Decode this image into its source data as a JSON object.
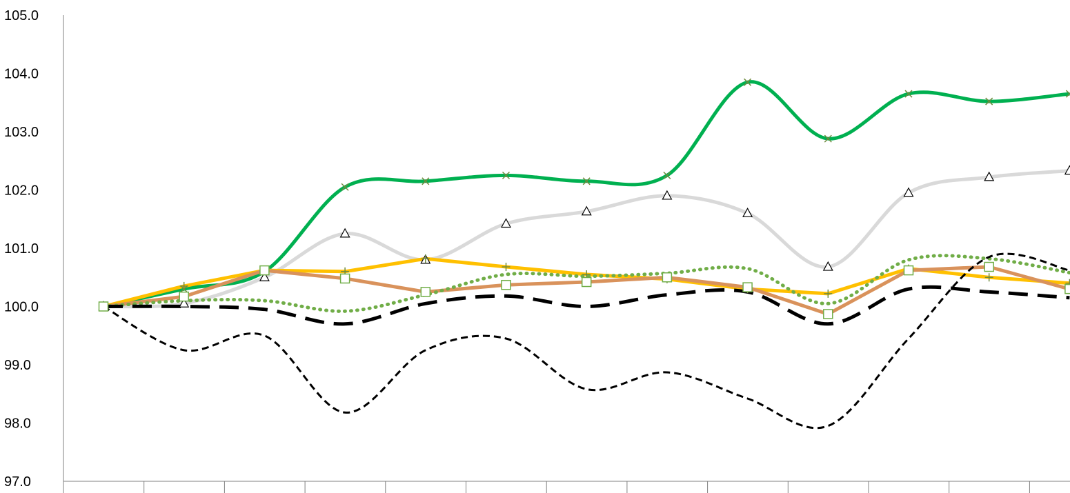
{
  "chart_data": {
    "type": "line",
    "title": "",
    "xlabel": "",
    "ylabel": "",
    "ylim": [
      97.0,
      105.0
    ],
    "yticks": [
      "105.0",
      "104.0",
      "103.0",
      "102.0",
      "101.0",
      "100.0",
      "99.0",
      "98.0",
      "97.0"
    ],
    "x_count": 13,
    "grid": false,
    "legend": "none",
    "series": [
      {
        "style": "solid-x-markers",
        "color": "#00B050",
        "marker_color": "#6E8B3D",
        "smooth": true,
        "values": [
          100.0,
          100.3,
          100.6,
          102.05,
          102.15,
          102.25,
          102.15,
          102.25,
          103.85,
          102.88,
          103.65,
          103.52,
          103.65
        ]
      },
      {
        "style": "solid-triangle-markers",
        "color": "#D9D9D9",
        "marker_color": "#000000",
        "smooth": true,
        "values": [
          100.0,
          100.05,
          100.5,
          101.25,
          100.8,
          101.42,
          101.63,
          101.9,
          101.6,
          100.68,
          101.95,
          102.22,
          102.33
        ]
      },
      {
        "style": "solid-plus-markers",
        "color": "#FFC000",
        "marker_color": "#6E8B3D",
        "smooth": false,
        "values": [
          100.0,
          100.35,
          100.62,
          100.6,
          100.82,
          100.68,
          100.55,
          100.47,
          100.3,
          100.22,
          100.65,
          100.5,
          100.4
        ]
      },
      {
        "style": "solid-square-markers",
        "color": "#D9925B",
        "marker_color": "#70AD47",
        "smooth": false,
        "values": [
          100.0,
          100.17,
          100.62,
          100.48,
          100.25,
          100.37,
          100.42,
          100.5,
          100.33,
          99.87,
          100.62,
          100.68,
          100.3
        ]
      },
      {
        "style": "dotted",
        "color": "#70AD47",
        "smooth": true,
        "values": [
          100.0,
          100.1,
          100.1,
          99.92,
          100.2,
          100.55,
          100.52,
          100.57,
          100.65,
          100.05,
          100.8,
          100.82,
          100.58
        ]
      },
      {
        "style": "long-dash",
        "color": "#000000",
        "smooth": true,
        "values": [
          100.0,
          100.0,
          99.95,
          99.7,
          100.05,
          100.18,
          100.0,
          100.2,
          100.25,
          99.7,
          100.3,
          100.25,
          100.15
        ]
      },
      {
        "style": "short-dash",
        "color": "#000000",
        "smooth": true,
        "values": [
          100.0,
          99.25,
          99.5,
          98.18,
          99.25,
          99.45,
          98.58,
          98.87,
          98.42,
          97.95,
          99.45,
          100.85,
          100.62
        ]
      }
    ]
  }
}
